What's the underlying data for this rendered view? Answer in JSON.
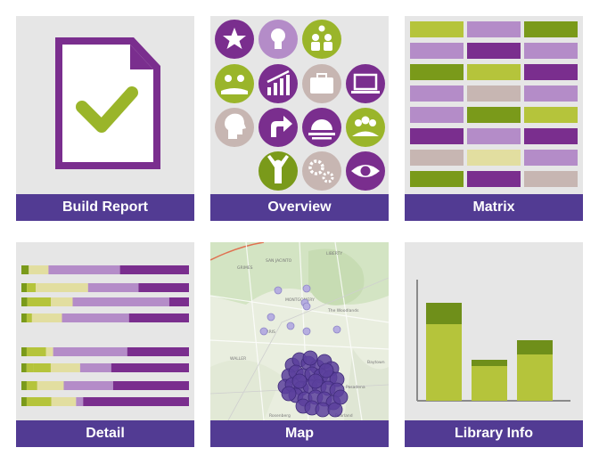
{
  "tiles": [
    {
      "id": "build-report",
      "label": "Build Report",
      "icon": "document-check-icon"
    },
    {
      "id": "overview",
      "label": "Overview",
      "icon": "icon-grid"
    },
    {
      "id": "matrix",
      "label": "Matrix",
      "icon": "matrix-grid"
    },
    {
      "id": "detail",
      "label": "Detail",
      "icon": "stacked-bars"
    },
    {
      "id": "map",
      "label": "Map",
      "icon": "map-clusters"
    },
    {
      "id": "library-info",
      "label": "Library Info",
      "icon": "bar-chart"
    }
  ],
  "map": {
    "place_labels": [
      "GRIMES",
      "SAN JACINTO",
      "LIBERTY",
      "MONTGOMERY",
      "The Woodlands",
      "HARRIS",
      "WALLER",
      "Pasadena",
      "Baytown",
      "Rosenberg",
      "Pearland"
    ]
  },
  "colors": {
    "caption_bg": "#523b93",
    "tile_bg": "#e6e6e6",
    "purple": "#7a2e8e",
    "light_purple": "#b48cc8",
    "olive": "#7a9a1a",
    "light_olive": "#b5c43b",
    "beige": "#e2dea0",
    "taupe": "#c7b6b2"
  }
}
